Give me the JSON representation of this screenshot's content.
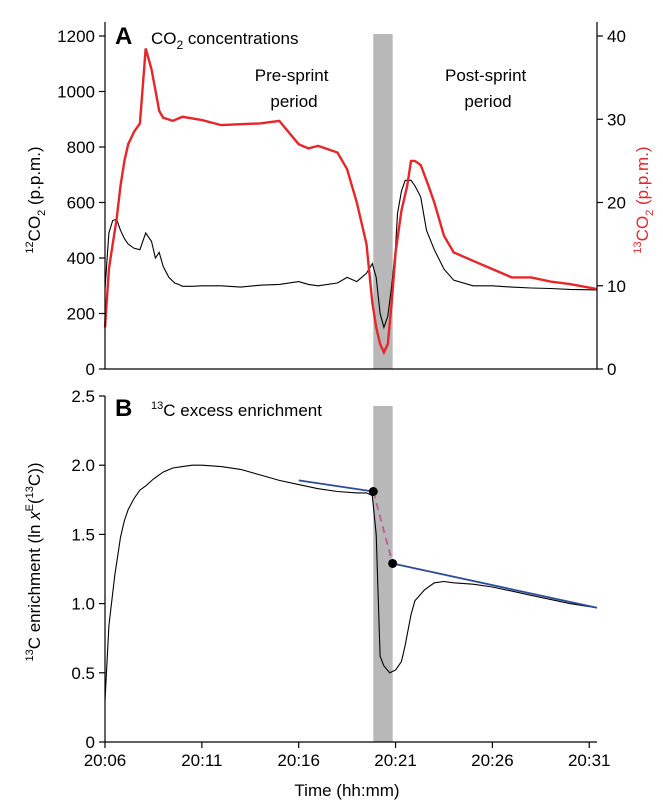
{
  "colors": {
    "co2_12": "#000000",
    "co2_13": "#e8262a",
    "enrichment": "#000000",
    "fit": "#2b4b9b",
    "interp": "#c0589a",
    "sprint": "#b8b8b8"
  },
  "xaxis": {
    "label": "Time (hh:mm)",
    "ticks": [
      "20:06",
      "20:11",
      "20:16",
      "20:21",
      "20:26",
      "20:31"
    ],
    "tick_minutes": [
      0,
      5,
      10,
      15,
      20,
      25
    ],
    "xlim_minutes": [
      0,
      25.4
    ],
    "sprint_minutes": [
      13.85,
      14.85
    ]
  },
  "chart_data": [
    {
      "type": "line",
      "panel": "A",
      "title_main": "CO",
      "title_sub": "2",
      "title_rest": " concentrations",
      "left_axis": {
        "label_sup": "12",
        "label_main": "CO",
        "label_sub": "2",
        "label_rest": " (p.p.m.)",
        "ylim": [
          0,
          1200
        ],
        "ticks": [
          0,
          200,
          400,
          600,
          800,
          1000,
          1200
        ]
      },
      "right_axis": {
        "label_sup": "13",
        "label_main": "CO",
        "label_sub": "2",
        "label_rest": " (p.p.m.)",
        "ylim": [
          0,
          40
        ],
        "ticks": [
          0,
          10,
          20,
          30,
          40
        ]
      },
      "annotations": [
        {
          "lines": [
            "Pre-sprint",
            "period"
          ]
        },
        {
          "lines": [
            "Post-sprint",
            "period"
          ]
        }
      ],
      "series": [
        {
          "axis": "left",
          "x": [
            0,
            0.2,
            0.4,
            0.6,
            0.8,
            1.0,
            1.2,
            1.5,
            1.8,
            2.1,
            2.4,
            2.6,
            2.8,
            3.0,
            3.3,
            3.6,
            3.8,
            4.0,
            4.5,
            5,
            6,
            7,
            8,
            9,
            10,
            10.5,
            11,
            12,
            12.5,
            13,
            13.5,
            13.8,
            14.0,
            14.2,
            14.4,
            14.6,
            14.8,
            15.0,
            15.1,
            15.3,
            15.5,
            15.8,
            16.0,
            16.3,
            16.6,
            17.0,
            17.5,
            18,
            19,
            20,
            21,
            22,
            23,
            24,
            25.4
          ],
          "y": [
            290,
            490,
            535,
            540,
            500,
            470,
            450,
            435,
            430,
            490,
            460,
            400,
            420,
            370,
            330,
            310,
            305,
            298,
            298,
            300,
            300,
            295,
            302,
            305,
            315,
            305,
            300,
            310,
            330,
            315,
            345,
            380,
            330,
            200,
            150,
            190,
            300,
            440,
            560,
            640,
            680,
            680,
            660,
            620,
            500,
            430,
            360,
            320,
            300,
            300,
            295,
            292,
            290,
            287,
            285
          ]
        },
        {
          "axis": "right",
          "x": [
            0,
            0.2,
            0.4,
            0.6,
            0.8,
            1.0,
            1.2,
            1.5,
            1.8,
            2.1,
            2.4,
            2.6,
            2.8,
            3.0,
            3.5,
            4,
            5,
            6,
            7,
            8,
            9,
            10,
            10.5,
            11,
            12,
            12.5,
            13,
            13.5,
            13.8,
            14.0,
            14.2,
            14.4,
            14.6,
            14.8,
            15.0,
            15.3,
            15.6,
            15.8,
            16.0,
            16.3,
            16.7,
            17.0,
            17.5,
            18,
            19,
            20,
            21,
            22,
            23,
            24,
            25.4
          ],
          "y": [
            5,
            12,
            15,
            18,
            22,
            25,
            27,
            28.5,
            29.5,
            38.5,
            36,
            33.5,
            31,
            30.2,
            29.8,
            30.3,
            29.9,
            29.3,
            29.4,
            29.5,
            29.8,
            27,
            26.5,
            26.8,
            26,
            24,
            20,
            15,
            8,
            5,
            3,
            2,
            3,
            8,
            14,
            19,
            22,
            25,
            25,
            24.5,
            22,
            20,
            16,
            14,
            13,
            12,
            11,
            11,
            10.5,
            10.2,
            9.6
          ]
        }
      ]
    },
    {
      "type": "line",
      "panel": "B",
      "title_sup": "13",
      "title_rest": "C excess enrichment",
      "y_axis": {
        "label_main": "C enrichment (ln ",
        "label_pre_sup": "13",
        "label_x": "x",
        "label_x_sup": "E",
        "label_open": "(",
        "label_in_sup": "13",
        "label_close": "C))",
        "ylim": [
          0,
          2.5
        ],
        "ticks": [
          "0",
          "0.5",
          "1.0",
          "1.5",
          "2.0",
          "2.5"
        ],
        "tick_values": [
          0,
          0.5,
          1.0,
          1.5,
          2.0,
          2.5
        ]
      },
      "series": [
        {
          "role": "measured",
          "x": [
            0,
            0.2,
            0.5,
            0.8,
            1.0,
            1.2,
            1.5,
            1.8,
            2.1,
            2.5,
            3,
            3.5,
            4,
            4.5,
            5,
            6,
            7,
            8,
            9,
            10,
            11,
            12,
            13,
            13.5,
            13.8,
            14.0,
            14.2,
            14.4,
            14.7,
            15.0,
            15.3,
            15.5,
            15.8,
            16.0,
            16.5,
            17,
            17.5,
            18,
            19,
            20,
            21,
            22,
            23,
            24,
            25.4
          ],
          "y": [
            0.3,
            0.84,
            1.2,
            1.48,
            1.6,
            1.68,
            1.76,
            1.82,
            1.85,
            1.9,
            1.95,
            1.98,
            1.99,
            2.0,
            2.0,
            1.99,
            1.97,
            1.93,
            1.89,
            1.86,
            1.83,
            1.81,
            1.8,
            1.8,
            1.78,
            1.5,
            0.62,
            0.55,
            0.5,
            0.52,
            0.58,
            0.7,
            0.92,
            1.02,
            1.1,
            1.15,
            1.16,
            1.15,
            1.14,
            1.12,
            1.09,
            1.06,
            1.03,
            1.0,
            0.97
          ]
        },
        {
          "role": "pre-sprint fit",
          "x": [
            10,
            13.85
          ],
          "y": [
            1.89,
            1.81
          ]
        },
        {
          "role": "post-sprint fit",
          "x": [
            14.85,
            25.4
          ],
          "y": [
            1.29,
            0.97
          ]
        },
        {
          "role": "sprint interpolation",
          "x": [
            13.85,
            14.85
          ],
          "y": [
            1.81,
            1.29
          ]
        }
      ],
      "markers": [
        {
          "x": 13.85,
          "y": 1.81
        },
        {
          "x": 14.85,
          "y": 1.29
        }
      ]
    }
  ]
}
